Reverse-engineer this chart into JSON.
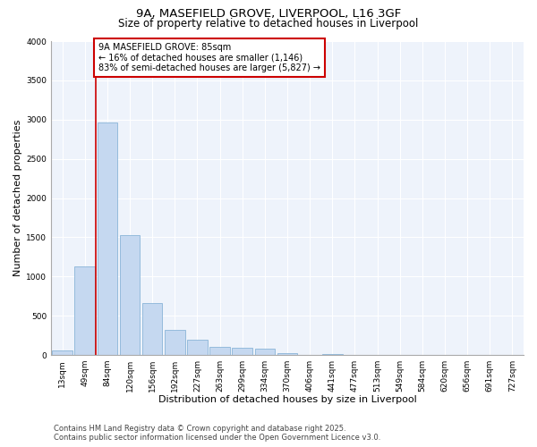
{
  "title_line1": "9A, MASEFIELD GROVE, LIVERPOOL, L16 3GF",
  "title_line2": "Size of property relative to detached houses in Liverpool",
  "xlabel": "Distribution of detached houses by size in Liverpool",
  "ylabel": "Number of detached properties",
  "categories": [
    "13sqm",
    "49sqm",
    "84sqm",
    "120sqm",
    "156sqm",
    "192sqm",
    "227sqm",
    "263sqm",
    "299sqm",
    "334sqm",
    "370sqm",
    "406sqm",
    "441sqm",
    "477sqm",
    "513sqm",
    "549sqm",
    "584sqm",
    "620sqm",
    "656sqm",
    "691sqm",
    "727sqm"
  ],
  "values": [
    55,
    1130,
    2960,
    1530,
    660,
    325,
    200,
    105,
    95,
    85,
    25,
    0,
    15,
    0,
    0,
    0,
    0,
    0,
    0,
    0,
    0
  ],
  "bar_color": "#c5d8f0",
  "bar_edge_color": "#8ab4d8",
  "vline_x": 1.5,
  "vline_color": "#cc0000",
  "annotation_title": "9A MASEFIELD GROVE: 85sqm",
  "annotation_line2": "← 16% of detached houses are smaller (1,146)",
  "annotation_line3": "83% of semi-detached houses are larger (5,827) →",
  "annotation_box_color": "#cc0000",
  "ylim": [
    0,
    4000
  ],
  "yticks": [
    0,
    500,
    1000,
    1500,
    2000,
    2500,
    3000,
    3500,
    4000
  ],
  "background_color": "#ffffff",
  "plot_background": "#eef3fb",
  "footer_line1": "Contains HM Land Registry data © Crown copyright and database right 2025.",
  "footer_line2": "Contains public sector information licensed under the Open Government Licence v3.0.",
  "title_fontsize": 9.5,
  "subtitle_fontsize": 8.5,
  "axis_label_fontsize": 8,
  "tick_fontsize": 6.5,
  "annotation_fontsize": 7,
  "footer_fontsize": 6
}
